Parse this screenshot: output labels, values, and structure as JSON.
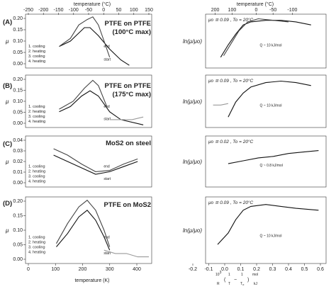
{
  "top_axis": {
    "left_label": "temperature (°C)",
    "left_ticks": [
      "-250",
      "-200",
      "-150",
      "-100",
      "-50",
      "0",
      "50",
      "100",
      "150"
    ],
    "right_label": "temperature (°C)",
    "right_ticks": [
      "200",
      "100",
      "0",
      "-50",
      "-100"
    ]
  },
  "bottom_axis": {
    "left_label": "temperature (K)",
    "left_ticks": [
      "0",
      "100",
      "200",
      "300",
      "400"
    ],
    "right_ticks": [
      "-0.2",
      "-0.1",
      "0.0",
      "0.1",
      "0.2",
      "0.3",
      "0.4",
      "0.5",
      "0.6"
    ],
    "right_label_parts": [
      "10",
      "3",
      "R",
      "(",
      "1",
      "T",
      "−",
      "1",
      "T",
      "o",
      ")",
      "mol",
      "kJ"
    ]
  },
  "y_left_label": "μ",
  "y_right_label": "ln(μ/μo)",
  "rows": [
    {
      "id": "A",
      "row_label": "(A)",
      "title_line1": "PTFE on PTFE",
      "title_line2": "(100°C max)",
      "yticks": [
        "0.20",
        "0.15",
        "0.10",
        "0.05",
        "0.00"
      ],
      "legend": [
        "1. cooling",
        "2. heating",
        "3. cooling",
        "4. heating"
      ],
      "annotations": {
        "end": "end",
        "start": "start",
        "curve1": "1",
        "curve2": "2"
      },
      "param": "μo ≅ 0.09 , To = 20°C",
      "slope": "Q ~ 10 kJ/mol"
    },
    {
      "id": "B",
      "row_label": "(B)",
      "title_line1": "PTFE on PTFE",
      "title_line2": "(175°C max)",
      "yticks": [
        "0.20",
        "0.15",
        "0.10",
        "0.05",
        "0.00"
      ],
      "legend": [
        "1. cooling",
        "2. heating",
        "3. cooling",
        "4. heating"
      ],
      "annotations": {
        "end": "end",
        "start": "start",
        "curve1": "1",
        "curve2": "2",
        "curve3": "3"
      },
      "param": "μo ≅ 0.09 , To = 20°C",
      "slope": "Q ~ 10 kJ/mol"
    },
    {
      "id": "C",
      "row_label": "(C)",
      "title_line1": "MoS2 on steel",
      "title_line2": "",
      "yticks": [
        "0.04",
        "0.03",
        "0.02",
        "0.01",
        "0.00"
      ],
      "legend": [
        "1. cooling",
        "2. heating",
        "3. cooling",
        "4. heating"
      ],
      "annotations": {
        "end": "end",
        "start": "start",
        "curve1": "1",
        "curve2": "2",
        "curve3": "3",
        "curve4": "4"
      },
      "param": "μo ≅ 0.02 , To = 20°C",
      "slope": "Q ~ 0.8 kJ/mol"
    },
    {
      "id": "D",
      "row_label": "(D)",
      "title_line1": "PTFE on MoS2",
      "title_line2": "",
      "yticks": [
        "0.20",
        "0.15",
        "0.10",
        "0.05",
        "0.00"
      ],
      "legend": [
        "1. cooling",
        "2. heating",
        "3. cooling",
        "4. heating"
      ],
      "annotations": {
        "end": "end",
        "start": "start",
        "curve1": "1",
        "curve2": "2",
        "curve3": "3",
        "curve4": "4"
      },
      "param": "μo ≅ 0.09 , To = 20°C",
      "slope": "Q ~ 10 kJ/mol"
    }
  ],
  "colors": {
    "cooling1": "#111111",
    "heating2": "#444444",
    "cooling3": "#9a9a9a",
    "heating4": "#bdbdbd"
  },
  "chart_data": [
    {
      "type": "line",
      "row": "A",
      "xlabel": "temperature (K)",
      "ylabel": "μ",
      "ylim": [
        0,
        0.2
      ],
      "xlim": [
        0,
        450
      ],
      "series": [
        {
          "name": "1. cooling",
          "x": [
            120,
            160,
            190,
            210,
            230,
            260,
            300,
            340,
            370
          ],
          "y": [
            0.08,
            0.1,
            0.13,
            0.15,
            0.15,
            0.12,
            0.07,
            0.03,
            0.01
          ]
        },
        {
          "name": "2. heating",
          "x": [
            120,
            160,
            190,
            220,
            240,
            260,
            280,
            300
          ],
          "y": [
            0.08,
            0.11,
            0.16,
            0.18,
            0.19,
            0.16,
            0.1,
            0.04
          ]
        }
      ]
    },
    {
      "type": "line",
      "row": "A",
      "xlabel": "",
      "ylabel": "ln(μ/μo)",
      "ylim": [
        -2.5,
        1
      ],
      "xlim": [
        -0.2,
        0.6
      ],
      "series": [
        {
          "name": "1. cooling",
          "x": [
            -0.1,
            -0.05,
            0,
            0.05,
            0.1,
            0.2,
            0.3,
            0.4,
            0.5
          ],
          "y": [
            -1.8,
            -1.0,
            -0.3,
            0.3,
            0.5,
            0.6,
            0.6,
            0.5,
            0.3
          ]
        },
        {
          "name": "2. heating",
          "x": [
            -0.08,
            -0.03,
            0.02,
            0.08,
            0.15,
            0.25,
            0.35
          ],
          "y": [
            -1.7,
            -0.9,
            -0.1,
            0.5,
            0.7,
            0.6,
            0.5
          ]
        }
      ]
    },
    {
      "type": "line",
      "row": "B",
      "xlabel": "temperature (K)",
      "ylabel": "μ",
      "ylim": [
        0,
        0.2
      ],
      "xlim": [
        0,
        450
      ],
      "series": [
        {
          "name": "1. cooling",
          "x": [
            120,
            160,
            200,
            230,
            260,
            300,
            340,
            420
          ],
          "y": [
            0.06,
            0.08,
            0.12,
            0.14,
            0.12,
            0.06,
            0.03,
            0.01
          ]
        },
        {
          "name": "2. heating",
          "x": [
            120,
            170,
            210,
            240,
            260,
            290
          ],
          "y": [
            0.07,
            0.1,
            0.15,
            0.18,
            0.16,
            0.08
          ]
        },
        {
          "name": "3. cooling",
          "x": [
            300,
            340,
            380,
            420
          ],
          "y": [
            0.03,
            0.03,
            0.03,
            0.04
          ]
        }
      ]
    },
    {
      "type": "line",
      "row": "B",
      "xlabel": "",
      "ylabel": "ln(μ/μo)",
      "ylim": [
        -2.5,
        1
      ],
      "xlim": [
        -0.2,
        0.6
      ],
      "series": [
        {
          "name": "1. cooling",
          "x": [
            -0.05,
            0,
            0.05,
            0.1,
            0.2,
            0.3,
            0.4,
            0.5
          ],
          "y": [
            -1.8,
            -0.8,
            -0.2,
            0.2,
            0.5,
            0.6,
            0.5,
            0.3
          ]
        },
        {
          "name": "3. cooling",
          "x": [
            -0.15,
            -0.1,
            -0.05
          ],
          "y": [
            -1.0,
            -1.0,
            -0.9
          ]
        }
      ]
    },
    {
      "type": "line",
      "row": "C",
      "xlabel": "temperature (K)",
      "ylabel": "μ",
      "ylim": [
        0,
        0.04
      ],
      "xlim": [
        0,
        450
      ],
      "series": [
        {
          "name": "1. cooling",
          "x": [
            100,
            150,
            200,
            250,
            300,
            350,
            400
          ],
          "y": [
            0.025,
            0.02,
            0.015,
            0.01,
            0.012,
            0.016,
            0.02
          ]
        },
        {
          "name": "2. heating",
          "x": [
            100,
            150,
            200,
            250,
            300,
            350,
            400
          ],
          "y": [
            0.03,
            0.025,
            0.018,
            0.012,
            0.013,
            0.018,
            0.022
          ]
        }
      ]
    },
    {
      "type": "line",
      "row": "C",
      "xlabel": "",
      "ylabel": "ln(μ/μo)",
      "ylim": [
        -2,
        1.5
      ],
      "xlim": [
        -0.2,
        0.6
      ],
      "series": [
        {
          "name": "1. cooling",
          "x": [
            -0.05,
            0.05,
            0.15,
            0.25,
            0.35,
            0.45,
            0.55
          ],
          "y": [
            -0.4,
            -0.2,
            0,
            0.1,
            0.3,
            0.4,
            0.5
          ]
        }
      ]
    },
    {
      "type": "line",
      "row": "D",
      "xlabel": "temperature (K)",
      "ylabel": "μ",
      "ylim": [
        0,
        0.2
      ],
      "xlim": [
        0,
        450
      ],
      "series": [
        {
          "name": "1. cooling",
          "x": [
            110,
            150,
            190,
            220,
            250,
            280,
            300
          ],
          "y": [
            0.05,
            0.09,
            0.14,
            0.16,
            0.13,
            0.08,
            0.04
          ]
        },
        {
          "name": "2. heating",
          "x": [
            110,
            150,
            190,
            220,
            250,
            280,
            300
          ],
          "y": [
            0.06,
            0.12,
            0.17,
            0.19,
            0.16,
            0.1,
            0.05
          ]
        },
        {
          "name": "3. cooling",
          "x": [
            280,
            320,
            360,
            400,
            440
          ],
          "y": [
            0.04,
            0.03,
            0.03,
            0.02,
            0.02
          ]
        }
      ]
    },
    {
      "type": "line",
      "row": "D",
      "xlabel": "",
      "ylabel": "ln(μ/μo)",
      "ylim": [
        -2.5,
        1
      ],
      "xlim": [
        -0.2,
        0.6
      ],
      "series": [
        {
          "name": "1. cooling",
          "x": [
            -0.12,
            -0.05,
            0,
            0.05,
            0.1,
            0.2,
            0.3,
            0.4,
            0.55
          ],
          "y": [
            -1.5,
            -0.9,
            -0.2,
            0.3,
            0.5,
            0.6,
            0.5,
            0.4,
            0.3
          ]
        }
      ]
    }
  ]
}
